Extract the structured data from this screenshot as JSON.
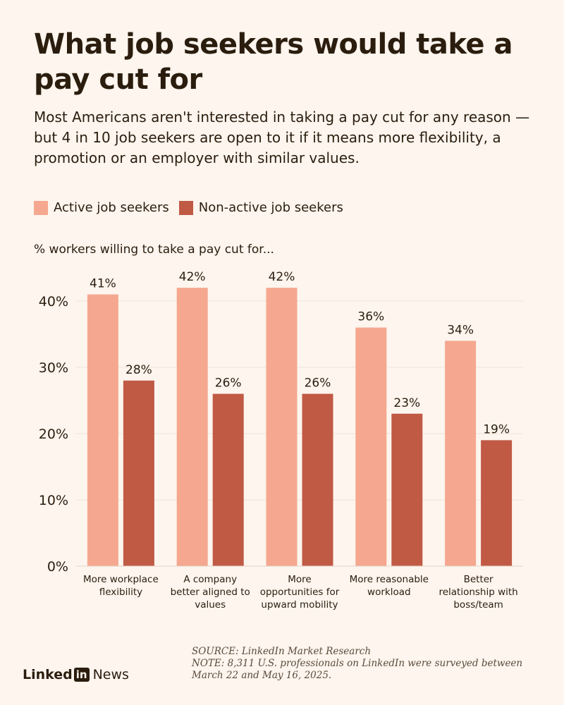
{
  "header": {
    "title": "What job seekers would take a pay cut for",
    "subtitle": "Most Americans aren't interested in taking a pay cut for any reason — but 4 in 10 job seekers are open to it if it means more flexibility, a promotion or an employer with similar values."
  },
  "legend": {
    "items": [
      {
        "label": "Active job seekers",
        "color": "#f5a88f"
      },
      {
        "label": "Non-active job seekers",
        "color": "#c05a45"
      }
    ]
  },
  "footer": {
    "source": "SOURCE: LinkedIn Market Research",
    "note_line1": "NOTE: 8,311 U.S. professionals on LinkedIn were surveyed between",
    "note_line2": "March 22 and May 16, 2025.",
    "brand_linked": "Linked",
    "brand_in": "in",
    "brand_news": "News"
  },
  "chart_data": {
    "type": "bar",
    "ylabel": "% workers willing to take a pay cut for...",
    "ylim": [
      0,
      45
    ],
    "yticks": [
      0,
      10,
      20,
      30,
      40
    ],
    "ytick_labels": [
      "0%",
      "10%",
      "20%",
      "30%",
      "40%"
    ],
    "grid": true,
    "legend_position": "top-left",
    "categories": [
      [
        "More workplace",
        "flexibility"
      ],
      [
        "A company",
        "better aligned to",
        "values"
      ],
      [
        "More",
        "opportunities for",
        "upward mobility"
      ],
      [
        "More reasonable",
        "workload"
      ],
      [
        "Better",
        "relationship with",
        "boss/team"
      ]
    ],
    "series": [
      {
        "name": "Active job seekers",
        "values": [
          41,
          42,
          42,
          36,
          34
        ],
        "labels": [
          "41%",
          "42%",
          "42%",
          "36%",
          "34%"
        ],
        "color": "#f5a88f"
      },
      {
        "name": "Non-active job seekers",
        "values": [
          28,
          26,
          26,
          23,
          19
        ],
        "labels": [
          "28%",
          "26%",
          "26%",
          "23%",
          "19%"
        ],
        "color": "#c05a45"
      }
    ]
  }
}
